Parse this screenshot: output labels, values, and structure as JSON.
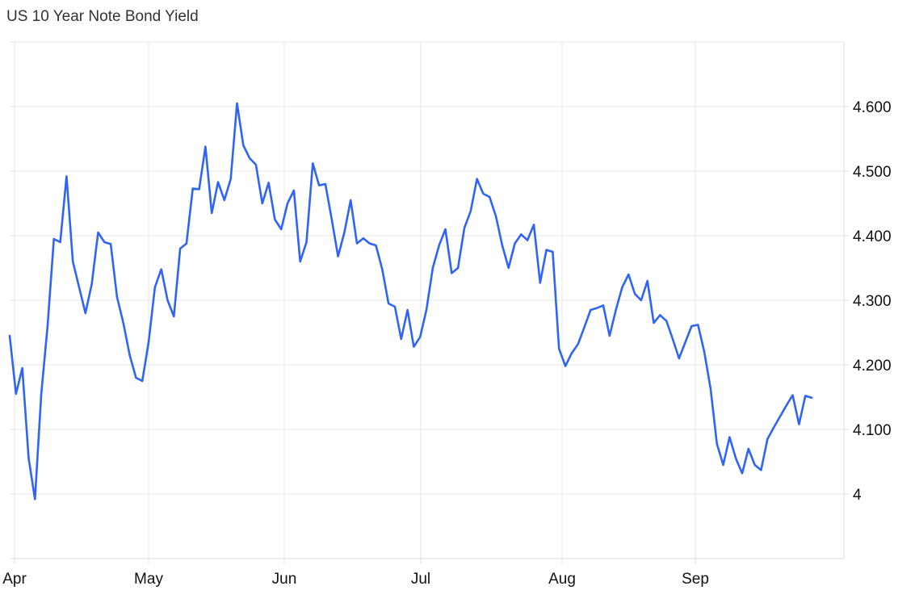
{
  "chart_data": {
    "type": "line",
    "title": "US 10 Year Note Bond Yield",
    "xlabel": "",
    "ylabel": "",
    "x_ticks": [
      "Apr",
      "May",
      "Jun",
      "Jul",
      "Aug",
      "Sep"
    ],
    "y_ticks": [
      "4",
      "4.100",
      "4.200",
      "4.300",
      "4.400",
      "4.500",
      "4.600"
    ],
    "y_tick_values": [
      4.0,
      4.1,
      4.2,
      4.3,
      4.4,
      4.5,
      4.6
    ],
    "ylim": [
      3.9,
      4.7
    ],
    "grid": true,
    "colors": {
      "line": "#2f64f5",
      "grid": "#e6e6e6",
      "axis": "#dcdcdc"
    },
    "series": [
      {
        "values": [
          4.245,
          4.155,
          4.195,
          4.055,
          3.992,
          4.155,
          4.26,
          4.395,
          4.39,
          4.492,
          4.36,
          4.32,
          4.28,
          4.325,
          4.405,
          4.39,
          4.387,
          4.305,
          4.265,
          4.215,
          4.18,
          4.175,
          4.235,
          4.32,
          4.348,
          4.3,
          4.275,
          4.38,
          4.388,
          4.473,
          4.472,
          4.538,
          4.435,
          4.483,
          4.455,
          4.488,
          4.605,
          4.54,
          4.52,
          4.51,
          4.45,
          4.482,
          4.425,
          4.41,
          4.45,
          4.47,
          4.36,
          4.39,
          4.512,
          4.478,
          4.48,
          4.425,
          4.368,
          4.405,
          4.455,
          4.388,
          4.396,
          4.388,
          4.385,
          4.348,
          4.295,
          4.29,
          4.24,
          4.285,
          4.228,
          4.243,
          4.285,
          4.35,
          4.385,
          4.41,
          4.342,
          4.35,
          4.412,
          4.438,
          4.488,
          4.465,
          4.46,
          4.43,
          4.385,
          4.35,
          4.388,
          4.402,
          4.393,
          4.417,
          4.327,
          4.378,
          4.375,
          4.225,
          4.198,
          4.218,
          4.232,
          4.258,
          4.285,
          4.288,
          4.292,
          4.245,
          4.285,
          4.32,
          4.34,
          4.31,
          4.3,
          4.33,
          4.265,
          4.277,
          4.268,
          4.24,
          4.21,
          4.235,
          4.26,
          4.262,
          4.22,
          4.163,
          4.078,
          4.045,
          4.088,
          4.055,
          4.032,
          4.07,
          4.045,
          4.037,
          4.085,
          4.103,
          4.12,
          4.137,
          4.153,
          4.108,
          4.152,
          4.149
        ]
      }
    ]
  }
}
